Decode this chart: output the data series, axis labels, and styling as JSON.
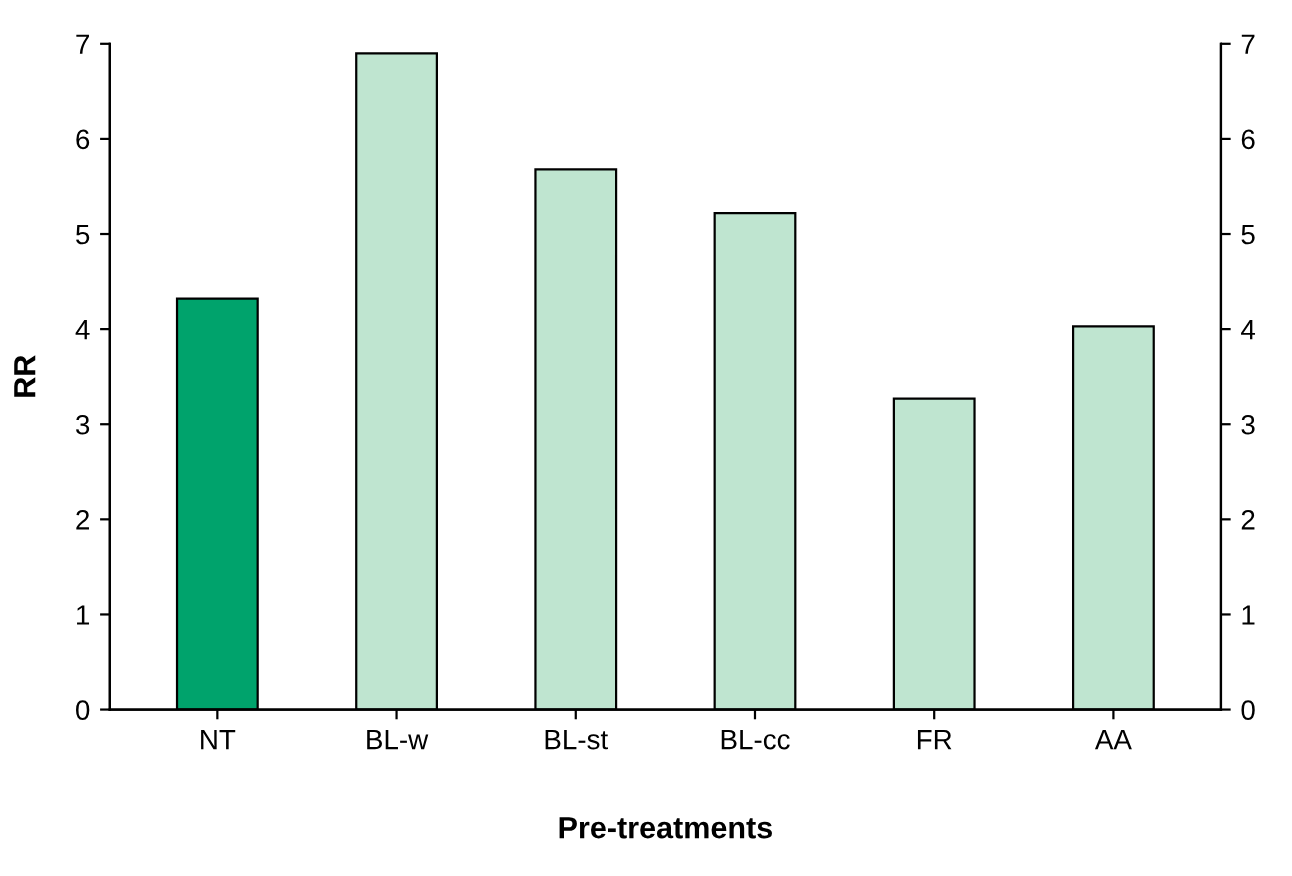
{
  "chart_data": {
    "type": "bar",
    "xlabel": "Pre-treatments",
    "ylabel": "RR",
    "categories": [
      "NT",
      "BL-w",
      "BL-st",
      "BL-cc",
      "FR",
      "AA"
    ],
    "values": [
      4.32,
      6.9,
      5.68,
      5.22,
      3.27,
      4.03
    ],
    "colors": [
      "#00a36c",
      "#bfe5d0",
      "#bfe5d0",
      "#bfe5d0",
      "#bfe5d0",
      "#bfe5d0"
    ],
    "ylim": [
      0,
      7
    ],
    "yticks": [
      0,
      1,
      2,
      3,
      4,
      5,
      6,
      7
    ],
    "y2lim": [
      0,
      7
    ],
    "y2ticks": [
      0,
      1,
      2,
      3,
      4,
      5,
      6,
      7
    ],
    "grid": false
  }
}
